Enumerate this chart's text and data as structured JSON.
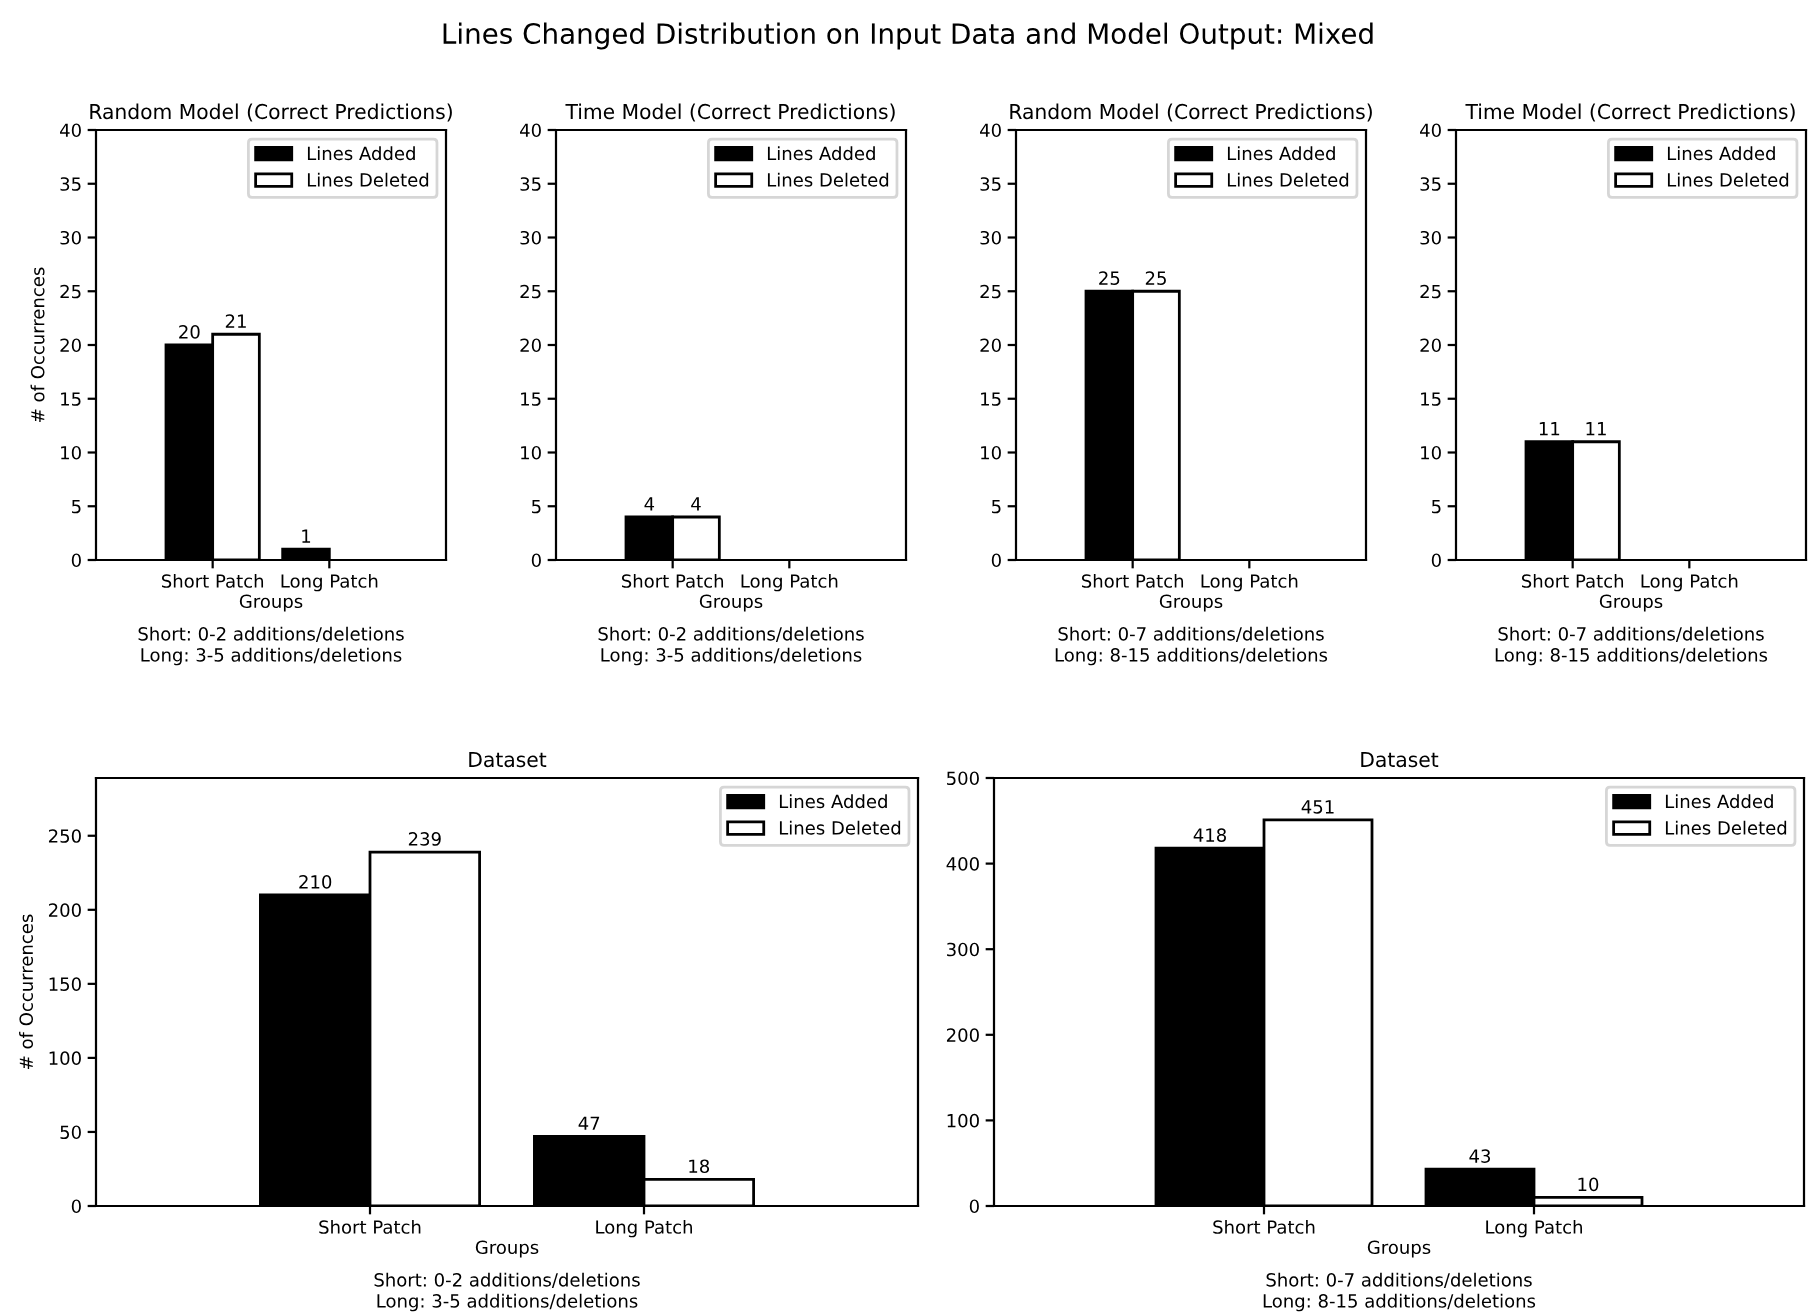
{
  "chart_data": [
    {
      "type": "bar",
      "title": "Random Model (Correct Predictions)",
      "xlabel": "Groups",
      "ylabel": "# of Occurrences",
      "categories": [
        "Short Patch",
        "Long Patch"
      ],
      "ylim": [
        0,
        40
      ],
      "yticks": [
        0,
        5,
        10,
        15,
        20,
        25,
        30,
        35,
        40
      ],
      "legend": "top right",
      "annotations": [
        "Lines Changed Distribution on Input Data and Model Output: Mixed",
        "Short: 0-2 additions/deletions",
        "Long: 3-5 additions/deletions"
      ],
      "series": [
        {
          "name": "Lines Added",
          "color": "#000000",
          "values": [
            20,
            1
          ],
          "value_labels": [
            "20",
            "1"
          ]
        },
        {
          "name": "Lines Deleted",
          "color": "#ffffff",
          "values": [
            21,
            0
          ],
          "value_labels": [
            "21",
            null
          ]
        }
      ]
    },
    {
      "type": "bar",
      "title": "Time Model (Correct Predictions)",
      "xlabel": "Groups",
      "categories": [
        "Short Patch",
        "Long Patch"
      ],
      "ylim": [
        0,
        40
      ],
      "yticks": [
        0,
        5,
        10,
        15,
        20,
        25,
        30,
        35,
        40
      ],
      "legend": "top right",
      "annotations": [
        "Short: 0-2 additions/deletions",
        "Long: 3-5 additions/deletions"
      ],
      "series": [
        {
          "name": "Lines Added",
          "color": "#000000",
          "values": [
            4,
            0
          ],
          "value_labels": [
            "4",
            null
          ]
        },
        {
          "name": "Lines Deleted",
          "color": "#ffffff",
          "values": [
            4,
            0
          ],
          "value_labels": [
            "4",
            null
          ]
        }
      ]
    },
    {
      "type": "bar",
      "title": "Random Model (Correct Predictions)",
      "xlabel": "Groups",
      "categories": [
        "Short Patch",
        "Long Patch"
      ],
      "ylim": [
        0,
        40
      ],
      "yticks": [
        0,
        5,
        10,
        15,
        20,
        25,
        30,
        35,
        40
      ],
      "legend": "top right",
      "annotations": [
        "Short: 0-7 additions/deletions",
        "Long: 8-15 additions/deletions"
      ],
      "series": [
        {
          "name": "Lines Added",
          "color": "#000000",
          "values": [
            25,
            0
          ],
          "value_labels": [
            "25",
            null
          ]
        },
        {
          "name": "Lines Deleted",
          "color": "#ffffff",
          "values": [
            25,
            0
          ],
          "value_labels": [
            "25",
            null
          ]
        }
      ]
    },
    {
      "type": "bar",
      "title": "Time Model (Correct Predictions)",
      "xlabel": "Groups",
      "categories": [
        "Short Patch",
        "Long Patch"
      ],
      "ylim": [
        0,
        40
      ],
      "yticks": [
        0,
        5,
        10,
        15,
        20,
        25,
        30,
        35,
        40
      ],
      "legend": "top right",
      "annotations": [
        "Short: 0-7 additions/deletions",
        "Long: 8-15 additions/deletions"
      ],
      "series": [
        {
          "name": "Lines Added",
          "color": "#000000",
          "values": [
            11,
            0
          ],
          "value_labels": [
            "11",
            null
          ]
        },
        {
          "name": "Lines Deleted",
          "color": "#ffffff",
          "values": [
            11,
            0
          ],
          "value_labels": [
            "11",
            null
          ]
        }
      ]
    },
    {
      "type": "bar",
      "title": "Dataset",
      "xlabel": "Groups",
      "ylabel": "# of Occurrences",
      "categories": [
        "Short Patch",
        "Long Patch"
      ],
      "ylim": [
        0,
        289
      ],
      "yticks": [
        0,
        50,
        100,
        150,
        200,
        250
      ],
      "legend": "top right",
      "data_labels": true,
      "annotations": [
        "Short: 0-2 additions/deletions",
        "Long: 3-5 additions/deletions"
      ],
      "series": [
        {
          "name": "Lines Added",
          "color": "#000000",
          "values": [
            210,
            47
          ]
        },
        {
          "name": "Lines Deleted",
          "color": "#ffffff",
          "values": [
            239,
            18
          ]
        }
      ]
    },
    {
      "type": "bar",
      "title": "Dataset",
      "xlabel": "Groups",
      "categories": [
        "Short Patch",
        "Long Patch"
      ],
      "ylim": [
        0,
        500
      ],
      "yticks": [
        0,
        100,
        200,
        300,
        400,
        500
      ],
      "legend": "top right",
      "data_labels": true,
      "annotations": [
        "Short: 0-7 additions/deletions",
        "Long: 8-15 additions/deletions"
      ],
      "series": [
        {
          "name": "Lines Added",
          "color": "#000000",
          "values": [
            418,
            43
          ]
        },
        {
          "name": "Lines Deleted",
          "color": "#ffffff",
          "values": [
            451,
            10
          ]
        }
      ]
    }
  ]
}
